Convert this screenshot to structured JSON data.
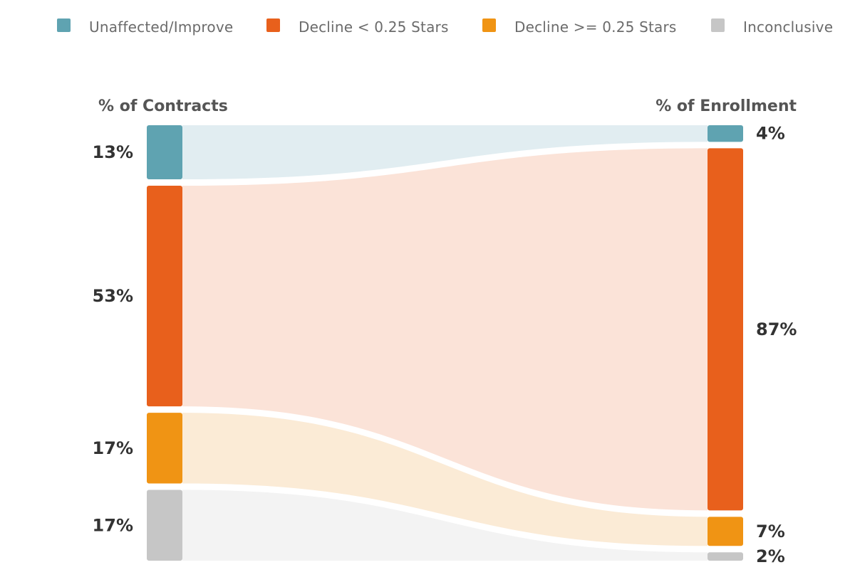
{
  "legend": {
    "items": [
      {
        "label": "Unaffected/Improve",
        "color": "#5fa3b1"
      },
      {
        "label": "Decline < 0.25 Stars",
        "color": "#e8601c"
      },
      {
        "label": "Decline >= 0.25 Stars",
        "color": "#f09414"
      },
      {
        "label": "Inconclusive",
        "color": "#c6c6c6"
      }
    ]
  },
  "chart_data": {
    "type": "sankey",
    "left_title": "% of Contracts",
    "right_title": "% of Enrollment",
    "categories": [
      "Unaffected/Improve",
      "Decline < 0.25 Stars",
      "Decline >= 0.25 Stars",
      "Inconclusive"
    ],
    "left_values": [
      13,
      53,
      17,
      17
    ],
    "right_values": [
      4,
      87,
      7,
      2
    ],
    "left_labels": [
      "13%",
      "53%",
      "17%",
      "17%"
    ],
    "right_labels": [
      "4%",
      "87%",
      "7%",
      "2%"
    ],
    "colors": [
      "#5fa3b1",
      "#e8601c",
      "#f09414",
      "#c6c6c6"
    ],
    "flow_colors": [
      "#e1edf1",
      "#fbe3d8",
      "#fbebd6",
      "#f3f3f3"
    ]
  }
}
